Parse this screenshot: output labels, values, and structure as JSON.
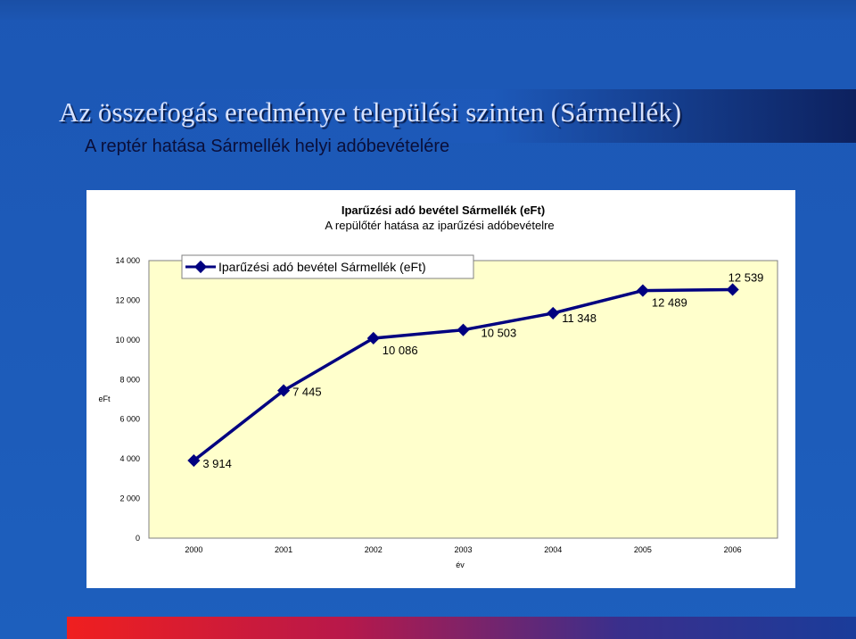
{
  "slide": {
    "title": "Az összefogás eredménye települési szinten (Sármellék)",
    "subtitle": "A reptér hatása Sármellék helyi adóbevételére"
  },
  "chart_data": {
    "type": "line",
    "title": "Iparűzési adó bevétel Sármellék (eFt)",
    "subtitle": "A repülőtér hatása az iparűzési adóbevételre",
    "xlabel": "év",
    "ylabel": "eFt",
    "categories": [
      "2000",
      "2001",
      "2002",
      "2003",
      "2004",
      "2005",
      "2006"
    ],
    "series": [
      {
        "name": "Iparűzési adó bevétel Sármellék (eFt)",
        "values": [
          3914,
          7445,
          10086,
          10503,
          11348,
          12489,
          12539
        ],
        "labels": [
          "3 914",
          "7 445",
          "10 086",
          "10 503",
          "11 348",
          "12 489",
          "12 539"
        ]
      }
    ],
    "ylim": [
      0,
      14000
    ],
    "yticks": [
      0,
      2000,
      4000,
      6000,
      8000,
      10000,
      12000,
      14000
    ],
    "ytick_labels": [
      "0",
      "2 000",
      "4 000",
      "6 000",
      "8 000",
      "10 000",
      "12 000",
      "14 000"
    ],
    "grid": false,
    "legend_position": "top-left",
    "colors": {
      "line": "#000080",
      "plot_background": "#ffffcc"
    }
  }
}
